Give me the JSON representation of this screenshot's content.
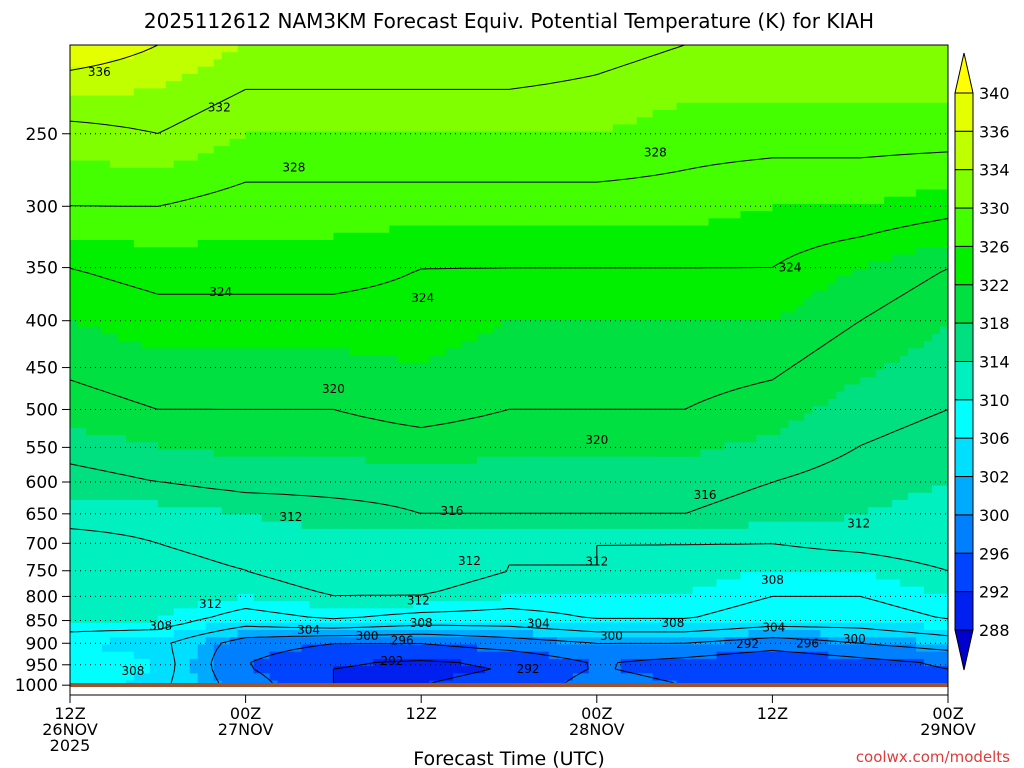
{
  "chart_data": {
    "type": "heatmap",
    "title": "2025112612 NAM3KM Forecast Equiv. Potential Temperature (K) for KIAH",
    "xlabel": "Forecast Time (UTC)",
    "credit": "coolwx.com/modelts",
    "x_ticks": [
      {
        "hour": 0,
        "label1": "12Z",
        "label2": "26NOV",
        "label3": "2025"
      },
      {
        "hour": 12,
        "label1": "00Z",
        "label2": "27NOV",
        "label3": ""
      },
      {
        "hour": 24,
        "label1": "12Z",
        "label2": "",
        "label3": ""
      },
      {
        "hour": 36,
        "label1": "00Z",
        "label2": "28NOV",
        "label3": ""
      },
      {
        "hour": 48,
        "label1": "12Z",
        "label2": "",
        "label3": ""
      },
      {
        "hour": 60,
        "label1": "00Z",
        "label2": "29NOV",
        "label3": ""
      }
    ],
    "xlim_hours": [
      0,
      60
    ],
    "ylabel": "",
    "y_scale": "log-pressure (hPa), inverted",
    "ylim_hPa": [
      1025,
      200
    ],
    "y_ticks": [
      250,
      300,
      350,
      400,
      450,
      500,
      550,
      600,
      650,
      700,
      750,
      800,
      850,
      900,
      950,
      1000
    ],
    "grid": "dotted horizontal lines at pressure ticks",
    "colorbar": {
      "labels": [
        340,
        336,
        334,
        330,
        326,
        322,
        318,
        314,
        310,
        306,
        302,
        300,
        296,
        292,
        288
      ],
      "colors": [
        "#ffff00",
        "#e4ff00",
        "#bfff00",
        "#80ff00",
        "#44ff00",
        "#00f000",
        "#00e040",
        "#00e080",
        "#00f0c0",
        "#00ffff",
        "#00dfff",
        "#00aaff",
        "#0080ff",
        "#0044ff",
        "#0020f0",
        "#0000cc"
      ]
    },
    "profiles": [
      {
        "p": 1000,
        "values": [
          308,
          305,
          298,
          292,
          292,
          293,
          298,
          296,
          294,
          296,
          296
        ]
      },
      {
        "p": 950,
        "values": [
          308,
          306,
          296,
          292,
          291,
          292,
          296,
          294,
          292,
          294,
          296
        ]
      },
      {
        "p": 900,
        "values": [
          306,
          305,
          298,
          296,
          296,
          298,
          300,
          300,
          298,
          300,
          302
        ]
      },
      {
        "p": 850,
        "values": [
          310,
          310,
          306,
          308,
          306,
          306,
          308,
          308,
          306,
          306,
          308
        ]
      },
      {
        "p": 800,
        "values": [
          312,
          312,
          310,
          312,
          312,
          310,
          310,
          310,
          308,
          308,
          310
        ]
      },
      {
        "p": 750,
        "values": [
          310,
          311,
          312,
          314,
          314,
          312,
          312,
          311,
          310,
          310,
          312
        ]
      },
      {
        "p": 700,
        "values": [
          311,
          312,
          313,
          313,
          312,
          312,
          312,
          312,
          312,
          313,
          314
        ]
      },
      {
        "p": 650,
        "values": [
          313,
          313,
          314,
          315,
          316,
          316,
          316,
          316,
          315,
          314,
          313
        ]
      },
      {
        "p": 600,
        "values": [
          315,
          316,
          317,
          317,
          317,
          317,
          317,
          317,
          316,
          315,
          314
        ]
      },
      {
        "p": 500,
        "values": [
          319,
          320,
          320,
          320,
          321,
          320,
          320,
          320,
          319,
          317,
          316
        ]
      },
      {
        "p": 400,
        "values": [
          322,
          323,
          323,
          323,
          323,
          322,
          322,
          322,
          322,
          320,
          318
        ]
      },
      {
        "p": 350,
        "values": [
          324,
          325,
          325,
          325,
          324,
          324,
          324,
          324,
          324,
          322,
          320
        ]
      },
      {
        "p": 300,
        "values": [
          328,
          328,
          327,
          327,
          327,
          327,
          327,
          327,
          326,
          326,
          325
        ]
      },
      {
        "p": 250,
        "values": [
          331,
          332,
          330,
          330,
          330,
          330,
          330,
          329,
          329,
          329,
          329
        ]
      },
      {
        "p": 200,
        "values": [
          338,
          336,
          334,
          334,
          334,
          334,
          333,
          332,
          332,
          332,
          332
        ]
      }
    ],
    "contour_labels": [
      {
        "value": 336,
        "hour": 2.0,
        "p": 214
      },
      {
        "value": 332,
        "hour": 10.2,
        "p": 234
      },
      {
        "value": 328,
        "hour": 15.3,
        "p": 272
      },
      {
        "value": 328,
        "hour": 40.0,
        "p": 262
      },
      {
        "value": 324,
        "hour": 10.3,
        "p": 372
      },
      {
        "value": 324,
        "hour": 24.1,
        "p": 378
      },
      {
        "value": 324,
        "hour": 49.2,
        "p": 350
      },
      {
        "value": 320,
        "hour": 18.0,
        "p": 475
      },
      {
        "value": 320,
        "hour": 36.0,
        "p": 540
      },
      {
        "value": 316,
        "hour": 26.1,
        "p": 645
      },
      {
        "value": 316,
        "hour": 43.4,
        "p": 620
      },
      {
        "value": 312,
        "hour": 15.1,
        "p": 655
      },
      {
        "value": 312,
        "hour": 53.9,
        "p": 666
      },
      {
        "value": 312,
        "hour": 27.3,
        "p": 732
      },
      {
        "value": 312,
        "hour": 36.0,
        "p": 733
      },
      {
        "value": 312,
        "hour": 9.6,
        "p": 815
      },
      {
        "value": 312,
        "hour": 23.8,
        "p": 808
      },
      {
        "value": 308,
        "hour": 48.0,
        "p": 768
      },
      {
        "value": 308,
        "hour": 6.2,
        "p": 862
      },
      {
        "value": 308,
        "hour": 24.0,
        "p": 855
      },
      {
        "value": 308,
        "hour": 41.2,
        "p": 855
      },
      {
        "value": 304,
        "hour": 16.3,
        "p": 870
      },
      {
        "value": 304,
        "hour": 32.0,
        "p": 856
      },
      {
        "value": 304,
        "hour": 48.1,
        "p": 865
      },
      {
        "value": 300,
        "hour": 20.3,
        "p": 884
      },
      {
        "value": 300,
        "hour": 37.0,
        "p": 884
      },
      {
        "value": 300,
        "hour": 53.6,
        "p": 890
      },
      {
        "value": 296,
        "hour": 22.7,
        "p": 894
      },
      {
        "value": 296,
        "hour": 50.4,
        "p": 900
      },
      {
        "value": 292,
        "hour": 46.3,
        "p": 902
      },
      {
        "value": 292,
        "hour": 22.0,
        "p": 941
      },
      {
        "value": 292,
        "hour": 31.3,
        "p": 960
      },
      {
        "value": 308,
        "hour": 4.3,
        "p": 965
      }
    ]
  }
}
